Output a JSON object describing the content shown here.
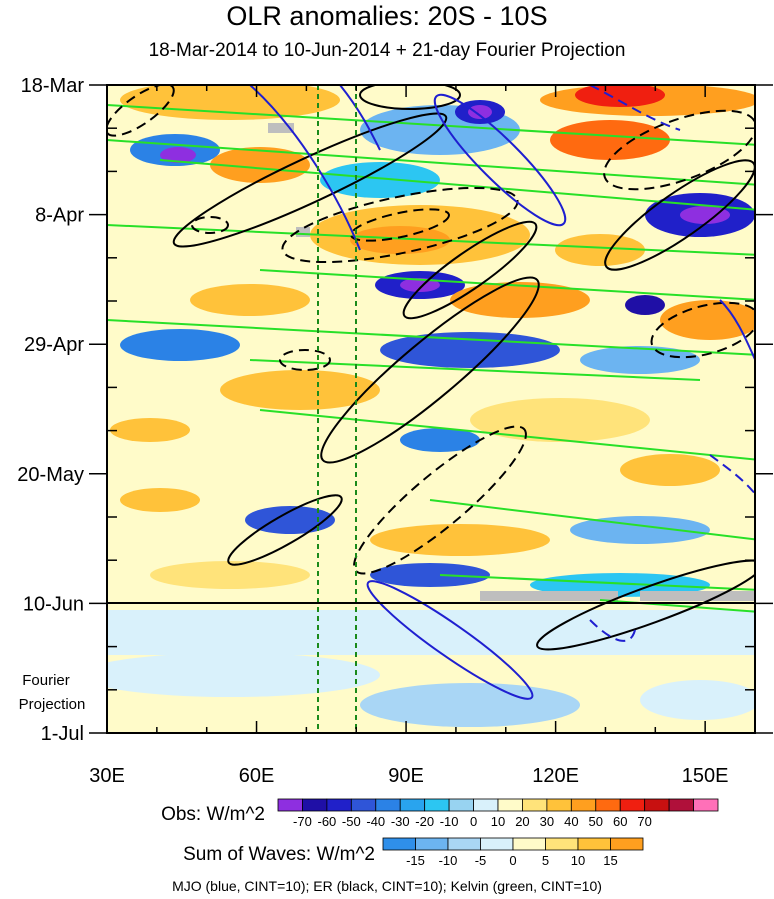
{
  "title": "OLR anomalies: 20S - 10S",
  "subtitle": "18-Mar-2014 to 10-Jun-2014 + 21-day Fourier Projection",
  "y_axis": {
    "tick_labels": [
      "18-Mar",
      "8-Apr",
      "29-Apr",
      "20-May",
      "10-Jun",
      "1-Jul"
    ],
    "projection_label_line1": "Fourier",
    "projection_label_line2": "Projection"
  },
  "x_axis": {
    "tick_labels": [
      "30E",
      "60E",
      "90E",
      "120E",
      "150E"
    ]
  },
  "legend_obs": {
    "label": "Obs: W/m^2",
    "ticks": [
      "-70",
      "-60",
      "-50",
      "-40",
      "-30",
      "-20",
      "-10",
      "0",
      "10",
      "20",
      "30",
      "40",
      "50",
      "60",
      "70"
    ],
    "colors": [
      "#8e2fe0",
      "#1f0fa6",
      "#2020c9",
      "#2f55d8",
      "#2b82e6",
      "#29a4ee",
      "#2cc6f2",
      "#98d3f1",
      "#d9f1fb",
      "#fffbc9",
      "#ffe37a",
      "#ffc23a",
      "#ff9f1f",
      "#ff6a10",
      "#f01f10",
      "#c81010",
      "#b0103a",
      "#ff70b8"
    ]
  },
  "legend_waves": {
    "label": "Sum of Waves: W/m^2",
    "ticks": [
      "-15",
      "-10",
      "-5",
      "0",
      "5",
      "10",
      "15"
    ],
    "colors": [
      "#2f8fea",
      "#6cb4f1",
      "#a9d6f5",
      "#d9f1fb",
      "#fffbc9",
      "#ffe37a",
      "#ffc23a",
      "#ff9f1f"
    ]
  },
  "footer": "MJO (blue, CINT=10); ER (black, CINT=10); Kelvin (green, CINT=10)",
  "chart_data": {
    "type": "heatmap",
    "xlim": [
      30,
      160
    ],
    "x_ticks": [
      30,
      60,
      90,
      120,
      150
    ],
    "y_dates": [
      "18-Mar",
      "8-Apr",
      "29-Apr",
      "20-May",
      "10-Jun",
      "1-Jul"
    ],
    "observed_end": "10-Jun",
    "reference_longitudes": [
      72.5,
      80
    ],
    "colors": {
      "mjo": "#1f1fd0",
      "er": "#000000",
      "kelvin": "#28e028",
      "reference_lines": "#1a8a1a",
      "missing": "#bebebe"
    }
  }
}
